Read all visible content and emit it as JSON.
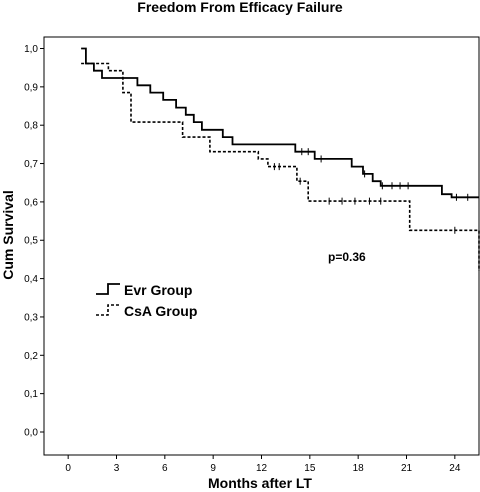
{
  "chart_data": {
    "type": "line",
    "title": "Freedom From Efficacy Failure",
    "xlabel": "Months after LT",
    "ylabel": "Cum Survival",
    "xlim": [
      -1.5,
      25.5
    ],
    "ylim": [
      -0.06,
      1.03
    ],
    "x_ticks": [
      0,
      3,
      6,
      9,
      12,
      15,
      18,
      21,
      24
    ],
    "y_ticks": [
      0.0,
      0.1,
      0.2,
      0.3,
      0.4,
      0.5,
      0.6,
      0.7,
      0.8,
      0.9,
      1.0
    ],
    "y_tick_labels": [
      "0,0",
      "0,1",
      "0,2",
      "0,3",
      "0,4",
      "0,5",
      "0,6",
      "0,7",
      "0,8",
      "0,9",
      "1,0"
    ],
    "annotation": "p=0.36",
    "legend_position": "left",
    "grid": false,
    "series": [
      {
        "name": "Evr Group",
        "style": "solid",
        "steps": [
          [
            0.8,
            1.0
          ],
          [
            1.1,
            0.961
          ],
          [
            1.6,
            0.942
          ],
          [
            2.1,
            0.923
          ],
          [
            4.3,
            0.904
          ],
          [
            5.1,
            0.885
          ],
          [
            5.9,
            0.866
          ],
          [
            6.7,
            0.846
          ],
          [
            7.3,
            0.827
          ],
          [
            7.8,
            0.808
          ],
          [
            8.3,
            0.788
          ],
          [
            9.6,
            0.769
          ],
          [
            10.2,
            0.75
          ],
          [
            14.1,
            0.731
          ],
          [
            15.3,
            0.712
          ],
          [
            17.6,
            0.692
          ],
          [
            18.3,
            0.673
          ],
          [
            18.9,
            0.654
          ],
          [
            19.4,
            0.642
          ],
          [
            23.2,
            0.62
          ],
          [
            23.8,
            0.612
          ]
        ],
        "end_x": 25.5,
        "censored": [
          [
            14.5,
            0.731
          ],
          [
            14.9,
            0.731
          ],
          [
            15.7,
            0.712
          ],
          [
            18.4,
            0.673
          ],
          [
            19.5,
            0.642
          ],
          [
            20.1,
            0.642
          ],
          [
            20.6,
            0.642
          ],
          [
            21.1,
            0.642
          ],
          [
            24.1,
            0.612
          ],
          [
            24.8,
            0.612
          ]
        ]
      },
      {
        "name": "CsA Group",
        "style": "dashed",
        "steps": [
          [
            0.8,
            0.961
          ],
          [
            2.5,
            0.942
          ],
          [
            3.4,
            0.885
          ],
          [
            3.9,
            0.808
          ],
          [
            7.1,
            0.769
          ],
          [
            8.8,
            0.731
          ],
          [
            11.8,
            0.712
          ],
          [
            12.4,
            0.692
          ],
          [
            14.2,
            0.654
          ],
          [
            14.9,
            0.602
          ],
          [
            21.2,
            0.526
          ],
          [
            25.5,
            0.42
          ]
        ],
        "end_x": 25.5,
        "censored": [
          [
            12.8,
            0.692
          ],
          [
            13.1,
            0.692
          ],
          [
            14.4,
            0.654
          ],
          [
            16.2,
            0.602
          ],
          [
            17.0,
            0.602
          ],
          [
            17.8,
            0.602
          ],
          [
            18.7,
            0.602
          ],
          [
            19.4,
            0.602
          ],
          [
            24.0,
            0.526
          ]
        ]
      }
    ]
  }
}
